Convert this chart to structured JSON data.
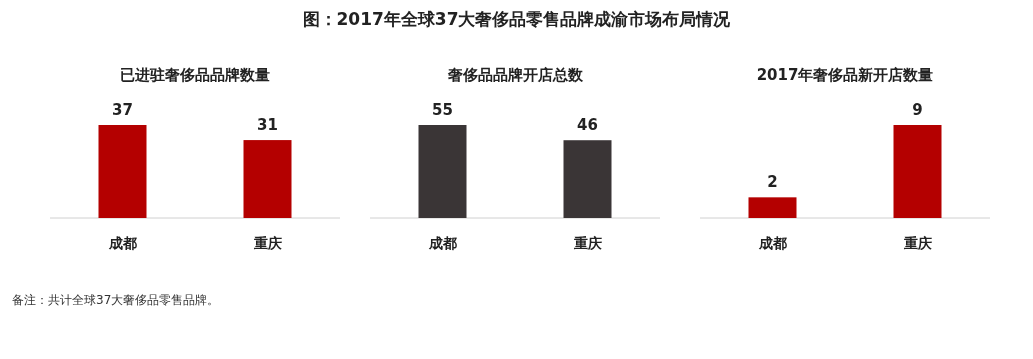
{
  "chart_data": [
    {
      "type": "other",
      "title": "图：2017年全球37大奢侈品零售品牌成渝市场布局情况"
    },
    {
      "type": "bar",
      "title": "已进驻奢侈品品牌数量",
      "categories": [
        "成都",
        "重庆"
      ],
      "values": [
        37,
        31
      ],
      "color": "#b40000",
      "data_labels": true
    },
    {
      "type": "bar",
      "title": "奢侈品品牌开店总数",
      "categories": [
        "成都",
        "重庆"
      ],
      "values": [
        55,
        46
      ],
      "color": "#3a3536",
      "data_labels": true
    },
    {
      "type": "bar",
      "title": "2017年奢侈品新开店数量",
      "categories": [
        "成都",
        "重庆"
      ],
      "values": [
        2,
        9
      ],
      "color": "#b40000",
      "data_labels": true
    },
    {
      "type": "other",
      "annotations": [
        "备注：共计全球37大奢侈品零售品牌。"
      ]
    }
  ]
}
